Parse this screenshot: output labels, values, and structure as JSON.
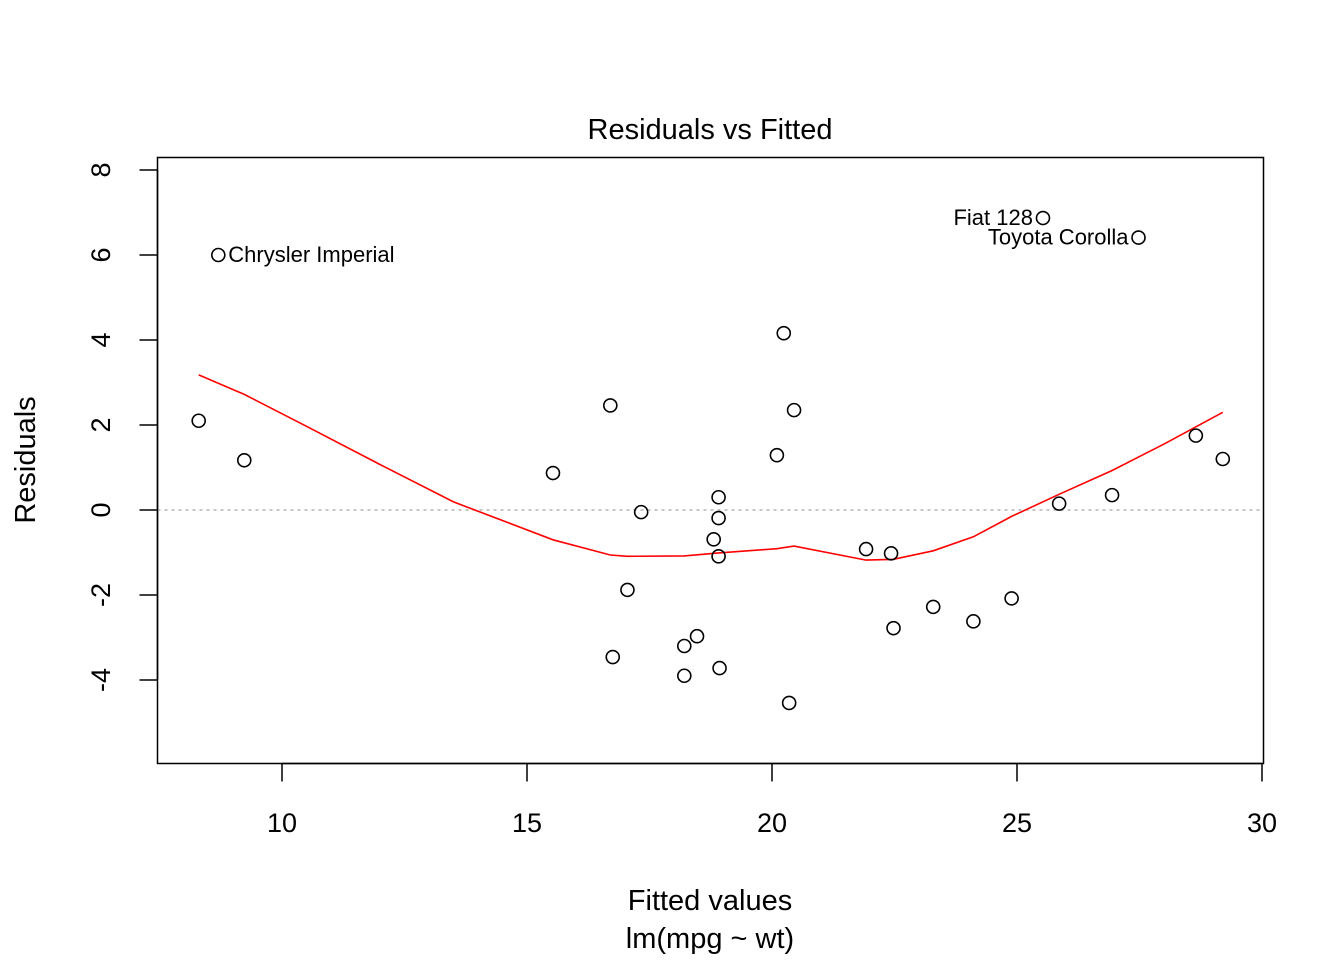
{
  "chart_data": {
    "type": "scatter",
    "title": "Residuals vs Fitted",
    "xlabel": "Fitted values",
    "xlabel_sub": "lm(mpg ~ wt)",
    "ylabel": "Residuals",
    "xlim": [
      7.5,
      30.0
    ],
    "ylim": [
      -6,
      8.3
    ],
    "x_ticks": [
      10,
      15,
      20,
      25,
      30
    ],
    "y_ticks": [
      -4,
      -2,
      0,
      2,
      4,
      6,
      8
    ],
    "reference_line_y": 0,
    "points": [
      {
        "x": 8.3,
        "y": 2.1
      },
      {
        "x": 8.7,
        "y": 6.0,
        "label": "Chrysler Imperial"
      },
      {
        "x": 9.23,
        "y": 1.17
      },
      {
        "x": 15.53,
        "y": 0.87
      },
      {
        "x": 16.7,
        "y": 2.46
      },
      {
        "x": 16.75,
        "y": -3.46
      },
      {
        "x": 17.05,
        "y": -1.88
      },
      {
        "x": 17.33,
        "y": -0.05
      },
      {
        "x": 18.21,
        "y": -3.2
      },
      {
        "x": 18.21,
        "y": -3.9
      },
      {
        "x": 18.47,
        "y": -2.97
      },
      {
        "x": 18.81,
        "y": -0.69
      },
      {
        "x": 18.91,
        "y": 0.3
      },
      {
        "x": 18.91,
        "y": -0.19
      },
      {
        "x": 18.91,
        "y": -1.09
      },
      {
        "x": 18.93,
        "y": -3.72
      },
      {
        "x": 20.1,
        "y": 1.29
      },
      {
        "x": 20.24,
        "y": 4.16
      },
      {
        "x": 20.35,
        "y": -4.54
      },
      {
        "x": 20.45,
        "y": 2.35
      },
      {
        "x": 21.92,
        "y": -0.92
      },
      {
        "x": 22.43,
        "y": -1.02
      },
      {
        "x": 22.48,
        "y": -2.78
      },
      {
        "x": 23.29,
        "y": -2.28
      },
      {
        "x": 24.11,
        "y": -2.62
      },
      {
        "x": 24.89,
        "y": -2.08
      },
      {
        "x": 25.53,
        "y": 6.87,
        "label": "Fiat 128"
      },
      {
        "x": 25.86,
        "y": 0.15
      },
      {
        "x": 26.94,
        "y": 0.35
      },
      {
        "x": 27.48,
        "y": 6.41,
        "label": "Toyota Corolla"
      },
      {
        "x": 28.65,
        "y": 1.75
      },
      {
        "x": 29.2,
        "y": 1.2
      }
    ],
    "smooth_line": {
      "color": "#ff0000",
      "x": [
        8.3,
        9.23,
        10.5,
        12.0,
        13.5,
        15.53,
        16.7,
        17.05,
        18.21,
        18.91,
        20.1,
        20.45,
        21.92,
        22.48,
        23.29,
        24.11,
        24.89,
        25.86,
        26.94,
        28.0,
        29.2
      ],
      "y": [
        3.18,
        2.72,
        1.97,
        1.07,
        0.19,
        -0.7,
        -1.06,
        -1.09,
        -1.08,
        -1.01,
        -0.91,
        -0.85,
        -1.18,
        -1.16,
        -0.96,
        -0.63,
        -0.15,
        0.37,
        0.93,
        1.55,
        2.3
      ]
    },
    "point_color": "#000000",
    "reference_line_color": "#b3b3b3"
  }
}
